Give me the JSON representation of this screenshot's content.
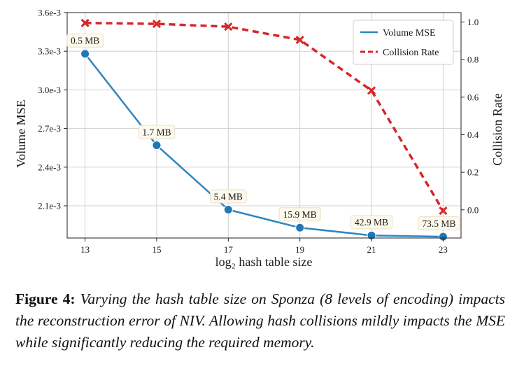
{
  "chart_data": {
    "type": "line",
    "x": [
      13,
      15,
      17,
      19,
      21,
      23
    ],
    "xlabel": "log₂ hash table size",
    "xticks": [
      "13",
      "15",
      "17",
      "19",
      "21",
      "23"
    ],
    "ylabel_left": "Volume MSE",
    "ylabel_right": "Collision Rate",
    "ylim_left": [
      0.00185,
      0.0036
    ],
    "ylim_right": [
      -0.15,
      1.05
    ],
    "yticks_left": [
      {
        "value": 0.0021,
        "label": "2.1e-3"
      },
      {
        "value": 0.0024,
        "label": "2.4e-3"
      },
      {
        "value": 0.0027,
        "label": "2.7e-3"
      },
      {
        "value": 0.003,
        "label": "3.0e-3"
      },
      {
        "value": 0.0033,
        "label": "3.3e-3"
      },
      {
        "value": 0.0036,
        "label": "3.6e-3"
      }
    ],
    "yticks_right": [
      {
        "value": 0.0,
        "label": "0.0"
      },
      {
        "value": 0.2,
        "label": "0.2"
      },
      {
        "value": 0.4,
        "label": "0.4"
      },
      {
        "value": 0.6,
        "label": "0.6"
      },
      {
        "value": 0.8,
        "label": "0.8"
      },
      {
        "value": 1.0,
        "label": "1.0"
      }
    ],
    "series": [
      {
        "name": "Volume MSE",
        "axis": "left",
        "color": "#2e86c1",
        "marker": "circle",
        "values": [
          0.00328,
          0.00257,
          0.00207,
          0.00193,
          0.00187,
          0.00186
        ],
        "labels": [
          "0.5 MB",
          "1.7 MB",
          "5.4 MB",
          "15.9 MB",
          "42.9 MB",
          "73.5 MB"
        ]
      },
      {
        "name": "Collision Rate",
        "axis": "right",
        "color": "#d62728",
        "marker": "x",
        "dashed": true,
        "values": [
          0.995,
          0.99,
          0.975,
          0.905,
          0.635,
          -0.005
        ]
      }
    ],
    "grid": true,
    "legend": "top-right"
  },
  "caption": {
    "label": "Figure 4:",
    "text": "Varying the hash table size on Sponza (8 levels of encoding) impacts the reconstruction error of NIV. Allowing hash collisions mildly impacts the MSE while significantly reducing the required memory."
  }
}
